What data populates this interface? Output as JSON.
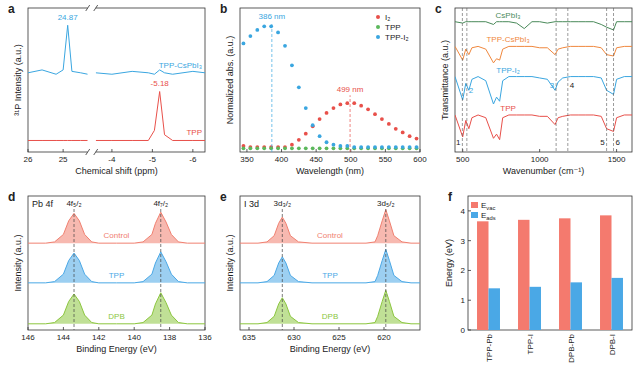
{
  "chart_data": [
    {
      "type": "line",
      "panel_label": "a",
      "x_label": "Chemical shift (ppm)",
      "y_label": "³¹P Intensity (a.u.)",
      "xlim": [
        [
          26,
          24.3
        ],
        [
          -3.6,
          -6.3
        ]
      ],
      "xticks": [
        26,
        25,
        -4,
        -5,
        -6
      ],
      "ylim": [
        0,
        1
      ],
      "tick_labels": "x",
      "x": [
        26,
        25.6,
        25.2,
        25.0,
        24.87,
        24.75,
        24.5,
        24.3,
        -3.6,
        -4.0,
        -4.5,
        -4.9,
        -5.05,
        -5.18,
        -5.3,
        -5.5,
        -6.0,
        -6.3
      ],
      "series": [
        {
          "name": "TPP-CsPbI₃",
          "color": "#3aa6e0",
          "values": [
            0.55,
            0.57,
            0.54,
            0.57,
            0.88,
            0.56,
            0.55,
            0.54,
            0.55,
            0.54,
            0.56,
            0.55,
            0.54,
            0.57,
            0.55,
            0.54,
            0.56,
            0.55
          ]
        },
        {
          "name": "TPP",
          "color": "#e8504a",
          "values": [
            0.08,
            0.08,
            0.08,
            0.08,
            0.08,
            0.08,
            0.08,
            0.08,
            0.08,
            0.08,
            0.08,
            0.08,
            0.15,
            0.42,
            0.12,
            0.08,
            0.08,
            0.08
          ]
        }
      ],
      "annotations": [
        {
          "text": "24.87",
          "x": 24.87,
          "y": 0.92,
          "color": "#3aa6e0"
        },
        {
          "text": "-5.18",
          "x": -5.18,
          "y": 0.46,
          "color": "#e8504a"
        }
      ]
    },
    {
      "type": "scatter",
      "panel_label": "b",
      "x_label": "Wavelength (nm)",
      "y_label": "Normalized abs. (a.u.)",
      "xlim": [
        340,
        600
      ],
      "xticks": [
        350,
        400,
        450,
        500,
        550,
        600
      ],
      "ylim": [
        -0.03,
        1.15
      ],
      "tick_labels": "x",
      "marker": "circle",
      "legend": "top-right",
      "x": [
        345,
        355,
        365,
        375,
        385,
        395,
        405,
        415,
        425,
        435,
        445,
        455,
        465,
        475,
        485,
        495,
        505,
        515,
        525,
        535,
        545,
        555,
        565,
        575,
        585,
        595
      ],
      "series": [
        {
          "name": "I₂",
          "color": "#e8504a",
          "values": [
            0.02,
            0.01,
            0.01,
            0.01,
            0.01,
            0.01,
            0.01,
            0.03,
            0.07,
            0.12,
            0.18,
            0.24,
            0.29,
            0.33,
            0.36,
            0.37,
            0.37,
            0.35,
            0.32,
            0.28,
            0.24,
            0.2,
            0.16,
            0.13,
            0.1,
            0.08
          ]
        },
        {
          "name": "TPP",
          "color": "#5cb85c",
          "values": [
            0,
            0,
            0,
            0,
            0,
            0,
            0,
            0,
            0,
            0,
            0,
            0,
            0,
            0,
            0,
            0,
            0,
            0,
            0,
            0,
            0,
            0,
            0,
            0,
            0,
            0
          ]
        },
        {
          "name": "TPP-I₂",
          "color": "#3aa6e0",
          "values": [
            0.86,
            0.92,
            0.97,
            1.0,
            1.0,
            0.95,
            0.84,
            0.68,
            0.5,
            0.33,
            0.19,
            0.1,
            0.05,
            0.03,
            0.02,
            0.02,
            0.01,
            0.01,
            0.01,
            0.01,
            0.01,
            0.01,
            0.01,
            0.01,
            0.01,
            0.01
          ]
        }
      ],
      "annotations": [
        {
          "text": "386 nm",
          "x": 386,
          "y": 1.06,
          "color": "#3aa6e0"
        },
        {
          "text": "499 nm",
          "x": 499,
          "y": 0.46,
          "color": "#e8504a"
        }
      ]
    },
    {
      "type": "line",
      "panel_label": "c",
      "x_label": "Wavenumber (cm⁻¹)",
      "y_label": "Transmittance (a.u.)",
      "xlim": [
        450,
        1600
      ],
      "xticks": [
        500,
        1000,
        1500
      ],
      "ylim": [
        -0.05,
        1
      ],
      "tick_labels": "x",
      "x": [
        450,
        500,
        520,
        540,
        560,
        600,
        650,
        700,
        720,
        740,
        760,
        800,
        850,
        900,
        950,
        1000,
        1050,
        1100,
        1120,
        1150,
        1200,
        1250,
        1300,
        1350,
        1400,
        1435,
        1480,
        1500,
        1550,
        1600
      ],
      "series": [
        {
          "name": "CsPbI₃",
          "color": "#4a8a5a",
          "values": [
            0.9,
            0.89,
            0.9,
            0.9,
            0.9,
            0.9,
            0.9,
            0.88,
            0.9,
            0.9,
            0.9,
            0.9,
            0.89,
            0.85,
            0.9,
            0.9,
            0.89,
            0.9,
            0.9,
            0.9,
            0.9,
            0.9,
            0.9,
            0.9,
            0.88,
            0.86,
            0.84,
            0.9,
            0.9,
            0.9
          ]
        },
        {
          "name": "TPP-CsPbI₃",
          "color": "#f0883e",
          "values": [
            0.72,
            0.62,
            0.7,
            0.66,
            0.71,
            0.72,
            0.7,
            0.6,
            0.63,
            0.62,
            0.7,
            0.72,
            0.72,
            0.72,
            0.72,
            0.71,
            0.71,
            0.66,
            0.7,
            0.71,
            0.72,
            0.72,
            0.72,
            0.72,
            0.71,
            0.66,
            0.65,
            0.71,
            0.72,
            0.72
          ]
        },
        {
          "name": "TPP-I₂",
          "color": "#3aa6e0",
          "values": [
            0.5,
            0.33,
            0.45,
            0.4,
            0.48,
            0.5,
            0.47,
            0.3,
            0.35,
            0.32,
            0.47,
            0.5,
            0.5,
            0.5,
            0.5,
            0.49,
            0.48,
            0.4,
            0.46,
            0.49,
            0.5,
            0.5,
            0.5,
            0.5,
            0.49,
            0.4,
            0.37,
            0.48,
            0.5,
            0.5
          ]
        },
        {
          "name": "TPP",
          "color": "#e8504a",
          "values": [
            0.22,
            0.06,
            0.18,
            0.12,
            0.2,
            0.22,
            0.2,
            0.05,
            0.08,
            0.04,
            0.2,
            0.22,
            0.22,
            0.22,
            0.22,
            0.21,
            0.21,
            0.15,
            0.2,
            0.21,
            0.22,
            0.22,
            0.22,
            0.22,
            0.21,
            0.12,
            0.1,
            0.2,
            0.22,
            0.22
          ]
        }
      ],
      "annotations": [
        {
          "text": "1",
          "x": 498,
          "y": 0.0,
          "color": "#222222"
        },
        {
          "text": "2",
          "x": 527,
          "y": 0.38,
          "color": "#3aa6e0"
        },
        {
          "text": "3",
          "x": 1107,
          "y": 0.42,
          "color": "#3aa6e0"
        },
        {
          "text": "4",
          "x": 1183,
          "y": 0.42,
          "color": "#222222"
        },
        {
          "text": "5",
          "x": 1435,
          "y": 0.0,
          "color": "#222222"
        },
        {
          "text": "6",
          "x": 1480,
          "y": 0.0,
          "color": "#222222"
        }
      ]
    },
    {
      "type": "area",
      "panel_label": "d",
      "title": "Pb 4f",
      "x_label": "Binding Energy (eV)",
      "y_label": "Intensity (a.u.)",
      "xlim": [
        146,
        136
      ],
      "xticks": [
        146,
        144,
        142,
        140,
        138,
        136
      ],
      "ylim": [
        0,
        1.08
      ],
      "tick_labels": "x",
      "x": [
        146,
        145,
        144.5,
        144,
        143.7,
        143.4,
        143.1,
        142.8,
        142.4,
        142,
        141,
        140,
        139.5,
        139,
        138.8,
        138.5,
        138.2,
        137.9,
        137.5,
        137,
        136
      ],
      "series": [
        {
          "name": "Control",
          "color": "#f08070",
          "values": [
            0.7,
            0.7,
            0.71,
            0.77,
            0.88,
            0.94,
            0.88,
            0.77,
            0.71,
            0.7,
            0.7,
            0.7,
            0.71,
            0.77,
            0.86,
            0.95,
            0.87,
            0.77,
            0.71,
            0.7,
            0.7
          ]
        },
        {
          "name": "TPP",
          "color": "#4aa8e6",
          "values": [
            0.38,
            0.38,
            0.39,
            0.45,
            0.56,
            0.62,
            0.56,
            0.45,
            0.39,
            0.38,
            0.38,
            0.38,
            0.39,
            0.45,
            0.54,
            0.63,
            0.55,
            0.45,
            0.39,
            0.38,
            0.38
          ]
        },
        {
          "name": "DPB",
          "color": "#8cc63f",
          "values": [
            0.05,
            0.05,
            0.06,
            0.12,
            0.23,
            0.29,
            0.23,
            0.12,
            0.06,
            0.05,
            0.05,
            0.05,
            0.06,
            0.12,
            0.21,
            0.3,
            0.22,
            0.12,
            0.06,
            0.05,
            0.05
          ]
        }
      ],
      "annotations": [
        {
          "text": "4f₅/₂",
          "x": 143.4
        },
        {
          "text": "4f₇/₂",
          "x": 138.5
        }
      ]
    },
    {
      "type": "area",
      "panel_label": "e",
      "title": "I 3d",
      "x_label": "Binding Energy (eV)",
      "y_label": "Intensity (a.u.)",
      "xlim": [
        636,
        616
      ],
      "xticks": [
        635,
        630,
        625,
        620
      ],
      "ylim": [
        0,
        1.08
      ],
      "tick_labels": "x",
      "x": [
        636,
        634,
        633,
        632.2,
        631.7,
        631.3,
        630.9,
        630.4,
        629.5,
        628,
        625,
        622,
        621,
        620.7,
        620.2,
        619.8,
        619.4,
        618.9,
        618,
        617,
        616
      ],
      "series": [
        {
          "name": "Control",
          "color": "#f08070",
          "values": [
            0.7,
            0.7,
            0.71,
            0.76,
            0.86,
            0.91,
            0.86,
            0.76,
            0.71,
            0.7,
            0.7,
            0.7,
            0.71,
            0.76,
            0.88,
            0.97,
            0.88,
            0.76,
            0.71,
            0.7,
            0.7
          ]
        },
        {
          "name": "TPP",
          "color": "#4aa8e6",
          "values": [
            0.38,
            0.38,
            0.39,
            0.44,
            0.54,
            0.59,
            0.54,
            0.44,
            0.39,
            0.38,
            0.38,
            0.38,
            0.39,
            0.44,
            0.56,
            0.65,
            0.56,
            0.44,
            0.39,
            0.38,
            0.38
          ]
        },
        {
          "name": "DPB",
          "color": "#8cc63f",
          "values": [
            0.05,
            0.05,
            0.06,
            0.11,
            0.21,
            0.26,
            0.21,
            0.11,
            0.06,
            0.05,
            0.05,
            0.05,
            0.06,
            0.11,
            0.23,
            0.32,
            0.23,
            0.11,
            0.06,
            0.05,
            0.05
          ]
        }
      ],
      "annotations": [
        {
          "text": "3d₃/₂",
          "x": 631.3
        },
        {
          "text": "3d₅/₂",
          "x": 619.8
        }
      ]
    },
    {
      "type": "bar",
      "panel_label": "f",
      "y_label": "Energy (eV)",
      "categories": [
        "TPP-Pb",
        "TPP-I",
        "DPB-Pb",
        "DPB-I"
      ],
      "ylim": [
        0,
        4.5
      ],
      "yticks": [
        0,
        1,
        2,
        3,
        4
      ],
      "legend": "top-left",
      "series": [
        {
          "name": "Evac",
          "color": "#f47a6e",
          "values": [
            3.65,
            3.7,
            3.75,
            3.85
          ]
        },
        {
          "name": "Eads",
          "color": "#4aa8e6",
          "values": [
            1.4,
            1.45,
            1.6,
            1.75
          ]
        }
      ]
    }
  ]
}
